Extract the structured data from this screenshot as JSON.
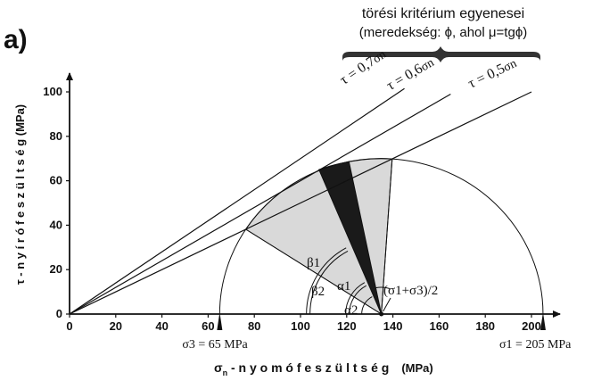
{
  "panel_label": "a)",
  "header": {
    "line1": "törési kritérium egyenesei",
    "line2": "(meredekség: ϕ, ahol μ=tgϕ)"
  },
  "axes": {
    "x_label_symbol": "σ",
    "x_label_sub": "n",
    "x_label_text": " - n y o m ó f e s z ü l t s é g",
    "x_label_unit": "(MPa)",
    "y_label": "τ - n y í r ó f e s z ü l t s é g   (MPa)",
    "x_ticks": [
      "0",
      "20",
      "40",
      "60",
      "80",
      "100",
      "120",
      "140",
      "160",
      "180",
      "200"
    ],
    "y_ticks": [
      "0",
      "20",
      "40",
      "60",
      "80",
      "100"
    ],
    "x_range": [
      0,
      205
    ],
    "y_range": [
      0,
      105
    ]
  },
  "criterion_lines": [
    {
      "label": "τ = 0,7σn",
      "tau_prefix": "τ = ",
      "coef": "0,7",
      "sigma": "σn",
      "slope": 0.7
    },
    {
      "label": "τ = 0,6σn",
      "tau_prefix": "τ = ",
      "coef": "0,6",
      "sigma": "σn",
      "slope": 0.6
    },
    {
      "label": "τ = 0,5σn",
      "tau_prefix": "τ = ",
      "coef": "0,5",
      "sigma": "σn",
      "slope": 0.5
    }
  ],
  "mohr_circle": {
    "sigma3": 65,
    "sigma1": 205,
    "center": 135,
    "radius": 70
  },
  "annotations": {
    "sigma3_label": "σ3 = 65 MPa",
    "sigma1_label": "σ1 = 205 MPa",
    "center_label": "(σ1+σ3)/2",
    "beta1": "β1",
    "beta2": "β2",
    "alpha1": "α1",
    "alpha2": "α2"
  },
  "colors": {
    "light_sector": "#d9d9d9",
    "dark_sector": "#1a1a1a",
    "ink": "#111111"
  }
}
